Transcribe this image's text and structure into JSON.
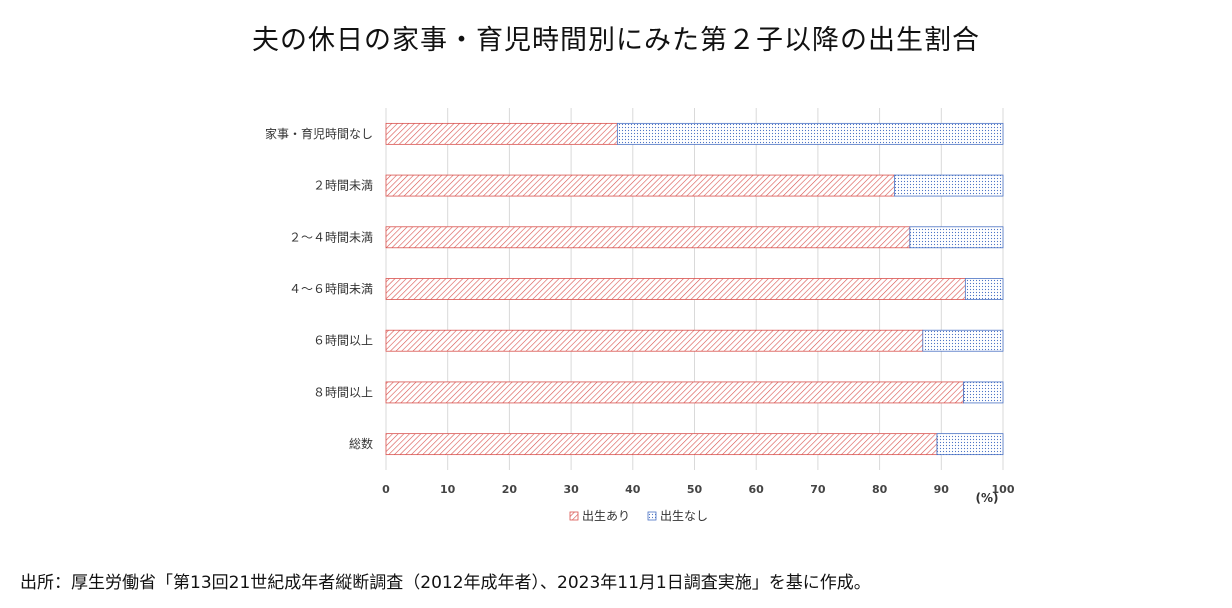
{
  "chart_data": {
    "type": "bar",
    "stacked": true,
    "orientation": "horizontal",
    "title": "夫の休日の家事・育児時間別にみた第２子以降の出生割合",
    "categories": [
      "家事・育児時間なし",
      "２時間未満",
      "２～４時間未満",
      "４～６時間未満",
      "６時間以上",
      "８時間以上",
      "総数"
    ],
    "series": [
      {
        "name": "出生あり",
        "values": [
          37.5,
          82.4,
          84.9,
          93.9,
          87.0,
          93.6,
          89.3
        ],
        "color": "#d9534f",
        "pattern": "diagonal-hatch"
      },
      {
        "name": "出生なし",
        "values": [
          62.5,
          17.6,
          15.1,
          6.1,
          13.0,
          6.4,
          10.7
        ],
        "color": "#4a72c4",
        "pattern": "dots"
      }
    ],
    "xlim": [
      0,
      100
    ],
    "xticks": [
      "0",
      "10",
      "20",
      "30",
      "40",
      "50",
      "60",
      "70",
      "80",
      "90",
      "100"
    ],
    "xunit": "(%)",
    "grid": true,
    "legend_position": "bottom-center"
  },
  "source": "出所：厚生労働省「第13回21世紀成年者縦断調査（2012年成年者）、2023年11月1日調査実施」を基に作成。"
}
